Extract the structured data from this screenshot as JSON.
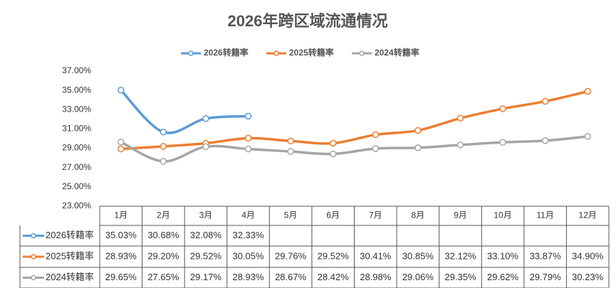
{
  "chart_data": {
    "type": "line",
    "title": "2026年跨区域流通情况",
    "categories": [
      "1月",
      "2月",
      "3月",
      "4月",
      "5月",
      "6月",
      "7月",
      "8月",
      "9月",
      "10月",
      "11月",
      "12月"
    ],
    "series": [
      {
        "name": "2026转籍率",
        "color": "#5b9bd5",
        "values": [
          35.03,
          30.68,
          32.08,
          32.33,
          null,
          null,
          null,
          null,
          null,
          null,
          null,
          null
        ],
        "value_labels": [
          "35.03%",
          "30.68%",
          "32.08%",
          "32.33%",
          null,
          null,
          null,
          null,
          null,
          null,
          null,
          null
        ]
      },
      {
        "name": "2025转籍率",
        "color": "#ed7d31",
        "values": [
          28.93,
          29.2,
          29.52,
          30.05,
          29.76,
          29.52,
          30.41,
          30.85,
          32.12,
          33.1,
          33.87,
          34.9
        ],
        "value_labels": [
          "28.93%",
          "29.20%",
          "29.52%",
          "30.05%",
          "29.76%",
          "29.52%",
          "30.41%",
          "30.85%",
          "32.12%",
          "33.10%",
          "33.87%",
          "34.90%"
        ]
      },
      {
        "name": "2024转籍率",
        "color": "#a5a5a5",
        "values": [
          29.65,
          27.65,
          29.17,
          28.93,
          28.67,
          28.42,
          28.98,
          29.06,
          29.35,
          29.62,
          29.79,
          30.23
        ],
        "value_labels": [
          "29.65%",
          "27.65%",
          "29.17%",
          "28.93%",
          "28.67%",
          "28.42%",
          "28.98%",
          "29.06%",
          "29.35%",
          "29.62%",
          "29.79%",
          "30.23%"
        ]
      }
    ],
    "ylim": [
      23,
      37
    ],
    "yticks": [
      {
        "value": 23,
        "label": "23.00%"
      },
      {
        "value": 25,
        "label": "25.00%"
      },
      {
        "value": 27,
        "label": "27.00%"
      },
      {
        "value": 29,
        "label": "29.00%"
      },
      {
        "value": 31,
        "label": "31.00%"
      },
      {
        "value": 33,
        "label": "33.00%"
      },
      {
        "value": 35,
        "label": "35.00%"
      },
      {
        "value": 37,
        "label": "37.00%"
      }
    ],
    "grid": false,
    "legend": "top",
    "smooth": true
  }
}
